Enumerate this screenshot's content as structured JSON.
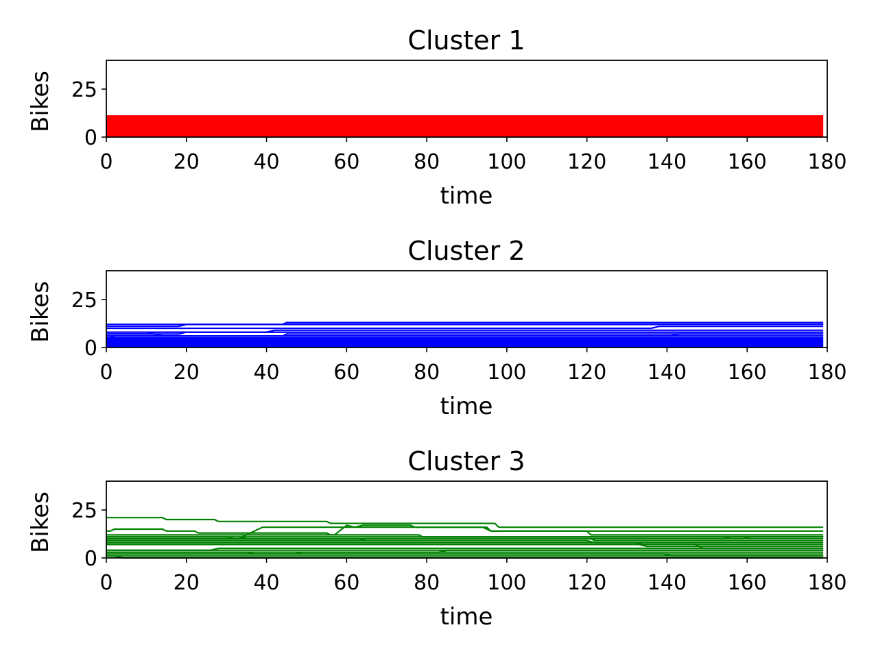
{
  "chart_data": [
    {
      "type": "line",
      "title": "Cluster 1",
      "xlabel": "time",
      "ylabel": "Bikes",
      "xlim": [
        0,
        180
      ],
      "ylim": [
        0,
        40
      ],
      "xticks": [
        0,
        20,
        40,
        60,
        80,
        100,
        120,
        140,
        160,
        180
      ],
      "yticks": [
        0,
        25
      ],
      "color": "#ff0000",
      "grid": false,
      "legend": "none",
      "series": [
        {
          "x": [
            0,
            179
          ],
          "y": [
            11,
            11
          ]
        },
        {
          "x": [
            0,
            179
          ],
          "y": [
            10.5,
            10.5
          ]
        },
        {
          "x": [
            0,
            179
          ],
          "y": [
            10,
            10
          ]
        },
        {
          "x": [
            0,
            179
          ],
          "y": [
            9.5,
            9.5
          ]
        },
        {
          "x": [
            0,
            179
          ],
          "y": [
            9,
            9
          ]
        },
        {
          "x": [
            0,
            179
          ],
          "y": [
            8.5,
            8.5
          ]
        },
        {
          "x": [
            0,
            179
          ],
          "y": [
            8,
            8
          ]
        },
        {
          "x": [
            0,
            179
          ],
          "y": [
            7.5,
            7.5
          ]
        },
        {
          "x": [
            0,
            179
          ],
          "y": [
            7,
            7
          ]
        },
        {
          "x": [
            0,
            179
          ],
          "y": [
            6.5,
            6.5
          ]
        },
        {
          "x": [
            0,
            179
          ],
          "y": [
            6,
            6
          ]
        },
        {
          "x": [
            0,
            179
          ],
          "y": [
            5.5,
            5.5
          ]
        },
        {
          "x": [
            0,
            179
          ],
          "y": [
            5,
            5
          ]
        },
        {
          "x": [
            0,
            179
          ],
          "y": [
            4.5,
            4.5
          ]
        },
        {
          "x": [
            0,
            179
          ],
          "y": [
            4,
            4
          ]
        },
        {
          "x": [
            0,
            179
          ],
          "y": [
            3.5,
            3.5
          ]
        },
        {
          "x": [
            0,
            179
          ],
          "y": [
            3,
            3
          ]
        },
        {
          "x": [
            0,
            179
          ],
          "y": [
            2.5,
            2.5
          ]
        },
        {
          "x": [
            0,
            179
          ],
          "y": [
            2,
            2
          ]
        },
        {
          "x": [
            0,
            179
          ],
          "y": [
            1.5,
            1.5
          ]
        },
        {
          "x": [
            0,
            179
          ],
          "y": [
            1,
            1
          ]
        },
        {
          "x": [
            0,
            179
          ],
          "y": [
            0.5,
            0.5
          ]
        },
        {
          "x": [
            0,
            179
          ],
          "y": [
            0.2,
            0.2
          ]
        }
      ]
    },
    {
      "type": "line",
      "title": "Cluster 2",
      "xlabel": "time",
      "ylabel": "Bikes",
      "xlim": [
        0,
        180
      ],
      "ylim": [
        0,
        40
      ],
      "xticks": [
        0,
        20,
        40,
        60,
        80,
        100,
        120,
        140,
        160,
        180
      ],
      "yticks": [
        0,
        25
      ],
      "color": "#0000ff",
      "grid": false,
      "legend": "none",
      "series": [
        {
          "x": [
            0,
            44,
            45,
            179
          ],
          "y": [
            12,
            12,
            13,
            13
          ]
        },
        {
          "x": [
            0,
            179
          ],
          "y": [
            12,
            12
          ]
        },
        {
          "x": [
            0,
            18,
            20,
            179
          ],
          "y": [
            11,
            11,
            12,
            12
          ]
        },
        {
          "x": [
            0,
            136,
            138,
            179
          ],
          "y": [
            10,
            10,
            11,
            11
          ]
        },
        {
          "x": [
            0,
            40,
            42,
            179
          ],
          "y": [
            8,
            8,
            9,
            9
          ]
        },
        {
          "x": [
            0,
            10,
            12,
            179
          ],
          "y": [
            7,
            7,
            8,
            8
          ]
        },
        {
          "x": [
            0,
            18,
            20,
            179
          ],
          "y": [
            7,
            7,
            8,
            8
          ]
        },
        {
          "x": [
            0,
            1,
            2,
            179
          ],
          "y": [
            5,
            5,
            6,
            6
          ]
        },
        {
          "x": [
            0,
            12,
            14,
            179
          ],
          "y": [
            7,
            7,
            6,
            6
          ]
        },
        {
          "x": [
            0,
            44,
            45,
            179
          ],
          "y": [
            6,
            6,
            7,
            7
          ]
        },
        {
          "x": [
            0,
            141,
            143,
            179
          ],
          "y": [
            6,
            6,
            7,
            7
          ]
        },
        {
          "x": [
            0,
            179
          ],
          "y": [
            5,
            5
          ]
        },
        {
          "x": [
            0,
            179
          ],
          "y": [
            4.5,
            4.5
          ]
        },
        {
          "x": [
            0,
            179
          ],
          "y": [
            4,
            4
          ]
        },
        {
          "x": [
            0,
            179
          ],
          "y": [
            3.5,
            3.5
          ]
        },
        {
          "x": [
            0,
            179
          ],
          "y": [
            3,
            3
          ]
        },
        {
          "x": [
            0,
            179
          ],
          "y": [
            2.5,
            2.5
          ]
        },
        {
          "x": [
            0,
            179
          ],
          "y": [
            2,
            2
          ]
        },
        {
          "x": [
            0,
            179
          ],
          "y": [
            1.5,
            1.5
          ]
        },
        {
          "x": [
            0,
            179
          ],
          "y": [
            1,
            1
          ]
        },
        {
          "x": [
            0,
            179
          ],
          "y": [
            0.5,
            0.5
          ]
        }
      ]
    },
    {
      "type": "line",
      "title": "Cluster 3",
      "xlabel": "time",
      "ylabel": "Bikes",
      "xlim": [
        0,
        180
      ],
      "ylim": [
        0,
        40
      ],
      "xticks": [
        0,
        20,
        40,
        60,
        80,
        100,
        120,
        140,
        160,
        180
      ],
      "yticks": [
        0,
        25
      ],
      "color": "#008000",
      "grid": false,
      "legend": "none",
      "series": [
        {
          "x": [
            0,
            14,
            15,
            27,
            28,
            55,
            56,
            97,
            98,
            179
          ],
          "y": [
            21,
            21,
            20,
            20,
            19,
            19,
            18,
            18,
            16,
            16
          ]
        },
        {
          "x": [
            0,
            1,
            2,
            14,
            15,
            22,
            23,
            55,
            56,
            78,
            79,
            179
          ],
          "y": [
            14,
            14,
            15,
            15,
            14,
            14,
            13,
            13,
            12,
            12,
            11,
            11
          ]
        },
        {
          "x": [
            0,
            57,
            60,
            62,
            64,
            76,
            77,
            94,
            96,
            179
          ],
          "y": [
            12,
            12,
            17,
            16,
            17,
            17,
            16,
            16,
            14,
            14
          ]
        },
        {
          "x": [
            0,
            34,
            36,
            37,
            39,
            95,
            96,
            120,
            121,
            179
          ],
          "y": [
            11,
            11,
            13,
            14,
            16,
            16,
            14,
            14,
            12,
            12
          ]
        },
        {
          "x": [
            0,
            30,
            32,
            33,
            35,
            179
          ],
          "y": [
            11,
            11,
            10,
            10,
            11,
            11
          ]
        },
        {
          "x": [
            0,
            154,
            156,
            179
          ],
          "y": [
            10,
            10,
            11,
            11
          ]
        },
        {
          "x": [
            0,
            159,
            161,
            179
          ],
          "y": [
            10,
            10,
            11,
            11
          ]
        },
        {
          "x": [
            0,
            63,
            65,
            179
          ],
          "y": [
            9,
            9,
            10,
            10
          ]
        },
        {
          "x": [
            0,
            121,
            122,
            179
          ],
          "y": [
            10,
            10,
            9,
            9
          ]
        },
        {
          "x": [
            0,
            120,
            122,
            179
          ],
          "y": [
            9,
            9,
            8,
            8
          ]
        },
        {
          "x": [
            0,
            132,
            134,
            179
          ],
          "y": [
            8,
            8,
            7,
            7
          ]
        },
        {
          "x": [
            0,
            133,
            135,
            179
          ],
          "y": [
            7,
            7,
            6,
            6
          ]
        },
        {
          "x": [
            0,
            147,
            149,
            179
          ],
          "y": [
            7,
            7,
            5,
            5
          ]
        },
        {
          "x": [
            0,
            26,
            28,
            179
          ],
          "y": [
            4,
            4,
            5,
            5
          ]
        },
        {
          "x": [
            0,
            179
          ],
          "y": [
            4,
            4
          ]
        },
        {
          "x": [
            0,
            83,
            85,
            179
          ],
          "y": [
            3,
            3,
            4,
            4
          ]
        },
        {
          "x": [
            0,
            35,
            37,
            47,
            49,
            179
          ],
          "y": [
            3,
            3,
            2,
            2,
            3,
            3
          ]
        },
        {
          "x": [
            0,
            179
          ],
          "y": [
            2,
            2
          ]
        },
        {
          "x": [
            0,
            139,
            141,
            179
          ],
          "y": [
            2,
            2,
            1,
            1
          ]
        },
        {
          "x": [
            0,
            179
          ],
          "y": [
            1,
            1
          ]
        },
        {
          "x": [
            0,
            2,
            4,
            179
          ],
          "y": [
            1,
            1,
            0,
            0
          ]
        }
      ]
    }
  ]
}
